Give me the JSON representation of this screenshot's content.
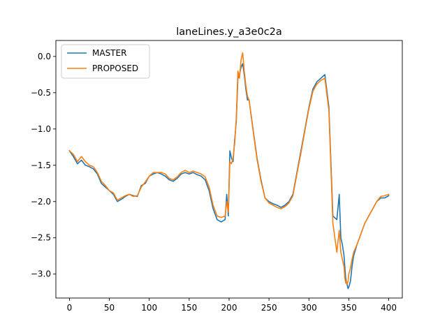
{
  "chart_data": {
    "type": "line",
    "title": "laneLines.y_a3e0c2a",
    "xlabel": "",
    "ylabel": "",
    "xlim": [
      -17,
      417
    ],
    "ylim": [
      -3.33,
      0.22
    ],
    "xticks": [
      0,
      50,
      100,
      150,
      200,
      250,
      300,
      350,
      400
    ],
    "xtick_labels": [
      "0",
      "50",
      "100",
      "150",
      "200",
      "250",
      "300",
      "350",
      "400"
    ],
    "yticks": [
      0.0,
      -0.5,
      -1.0,
      -1.5,
      -2.0,
      -2.5,
      -3.0
    ],
    "ytick_labels": [
      "0.0",
      "−0.5",
      "−1.0",
      "−1.5",
      "−2.0",
      "−2.5",
      "−3.0"
    ],
    "grid": false,
    "legend_position": "top-left",
    "series": [
      {
        "name": "MASTER",
        "color": "#1f77b4",
        "x": [
          0,
          5,
          10,
          15,
          20,
          25,
          30,
          35,
          40,
          45,
          50,
          55,
          60,
          65,
          70,
          75,
          80,
          85,
          90,
          95,
          100,
          105,
          110,
          115,
          120,
          125,
          130,
          135,
          140,
          145,
          150,
          155,
          160,
          165,
          170,
          175,
          180,
          185,
          190,
          195,
          197,
          199,
          201,
          203,
          205,
          207,
          209,
          211,
          213,
          215,
          217,
          219,
          221,
          223,
          225,
          230,
          235,
          240,
          245,
          250,
          255,
          260,
          265,
          270,
          275,
          280,
          285,
          290,
          295,
          300,
          305,
          310,
          315,
          320,
          325,
          330,
          335,
          338,
          340,
          342,
          344,
          345,
          346,
          347,
          348,
          349,
          350,
          352,
          354,
          356,
          360,
          365,
          370,
          375,
          380,
          385,
          390,
          395,
          400
        ],
        "y": [
          -1.3,
          -1.38,
          -1.48,
          -1.43,
          -1.5,
          -1.52,
          -1.55,
          -1.62,
          -1.75,
          -1.8,
          -1.85,
          -1.9,
          -2.0,
          -1.97,
          -1.93,
          -1.9,
          -1.92,
          -1.93,
          -1.78,
          -1.75,
          -1.65,
          -1.62,
          -1.6,
          -1.62,
          -1.65,
          -1.7,
          -1.72,
          -1.68,
          -1.62,
          -1.6,
          -1.62,
          -1.6,
          -1.63,
          -1.65,
          -1.7,
          -1.85,
          -2.1,
          -2.25,
          -2.28,
          -2.25,
          -1.9,
          -2.2,
          -1.3,
          -1.4,
          -1.45,
          -1.15,
          -0.9,
          -0.3,
          -0.25,
          -0.15,
          -0.1,
          -0.25,
          -0.45,
          -0.6,
          -0.6,
          -1.0,
          -1.4,
          -1.7,
          -1.95,
          -2.0,
          -2.03,
          -2.05,
          -2.08,
          -2.05,
          -2.0,
          -1.9,
          -1.6,
          -1.3,
          -1.0,
          -0.7,
          -0.45,
          -0.35,
          -0.3,
          -0.25,
          -0.7,
          -2.2,
          -2.25,
          -1.9,
          -2.5,
          -2.6,
          -2.75,
          -2.9,
          -3.05,
          -3.12,
          -3.15,
          -3.2,
          -3.18,
          -3.1,
          -2.9,
          -2.75,
          -2.6,
          -2.45,
          -2.3,
          -2.2,
          -2.1,
          -2.0,
          -1.95,
          -1.95,
          -1.92
        ]
      },
      {
        "name": "PROPOSED",
        "color": "#ff7f0e",
        "x": [
          0,
          5,
          10,
          15,
          20,
          25,
          30,
          35,
          40,
          45,
          50,
          55,
          60,
          65,
          70,
          75,
          80,
          85,
          90,
          95,
          100,
          105,
          110,
          115,
          120,
          125,
          130,
          135,
          140,
          145,
          150,
          155,
          160,
          165,
          170,
          175,
          180,
          185,
          190,
          195,
          197,
          199,
          201,
          203,
          205,
          207,
          209,
          211,
          213,
          215,
          217,
          219,
          221,
          223,
          225,
          230,
          235,
          240,
          245,
          250,
          255,
          260,
          265,
          270,
          275,
          280,
          285,
          290,
          295,
          300,
          305,
          310,
          315,
          320,
          325,
          330,
          335,
          338,
          340,
          342,
          344,
          345,
          346,
          347,
          348,
          349,
          350,
          352,
          354,
          356,
          360,
          365,
          370,
          375,
          380,
          385,
          390,
          395,
          400
        ],
        "y": [
          -1.3,
          -1.35,
          -1.45,
          -1.38,
          -1.45,
          -1.5,
          -1.52,
          -1.6,
          -1.72,
          -1.78,
          -1.85,
          -1.88,
          -1.98,
          -1.95,
          -1.92,
          -1.9,
          -1.93,
          -1.92,
          -1.8,
          -1.73,
          -1.65,
          -1.6,
          -1.6,
          -1.6,
          -1.62,
          -1.68,
          -1.7,
          -1.66,
          -1.6,
          -1.57,
          -1.6,
          -1.58,
          -1.6,
          -1.62,
          -1.66,
          -1.8,
          -2.05,
          -2.2,
          -2.22,
          -2.2,
          -2.0,
          -2.15,
          -1.45,
          -1.48,
          -1.4,
          -1.2,
          -0.85,
          -0.2,
          -0.3,
          -0.05,
          0.05,
          -0.2,
          -0.4,
          -0.55,
          -0.6,
          -1.02,
          -1.42,
          -1.72,
          -1.95,
          -2.02,
          -2.05,
          -2.08,
          -2.1,
          -2.07,
          -2.02,
          -1.92,
          -1.62,
          -1.33,
          -1.02,
          -0.72,
          -0.48,
          -0.38,
          -0.33,
          -0.3,
          -0.75,
          -2.3,
          -2.7,
          -2.4,
          -2.7,
          -2.8,
          -2.9,
          -3.05,
          -3.12,
          -3.1,
          -3.14,
          -3.1,
          -3.0,
          -2.92,
          -2.8,
          -2.7,
          -2.6,
          -2.45,
          -2.3,
          -2.2,
          -2.1,
          -2.0,
          -1.93,
          -1.92,
          -1.9
        ]
      }
    ]
  }
}
